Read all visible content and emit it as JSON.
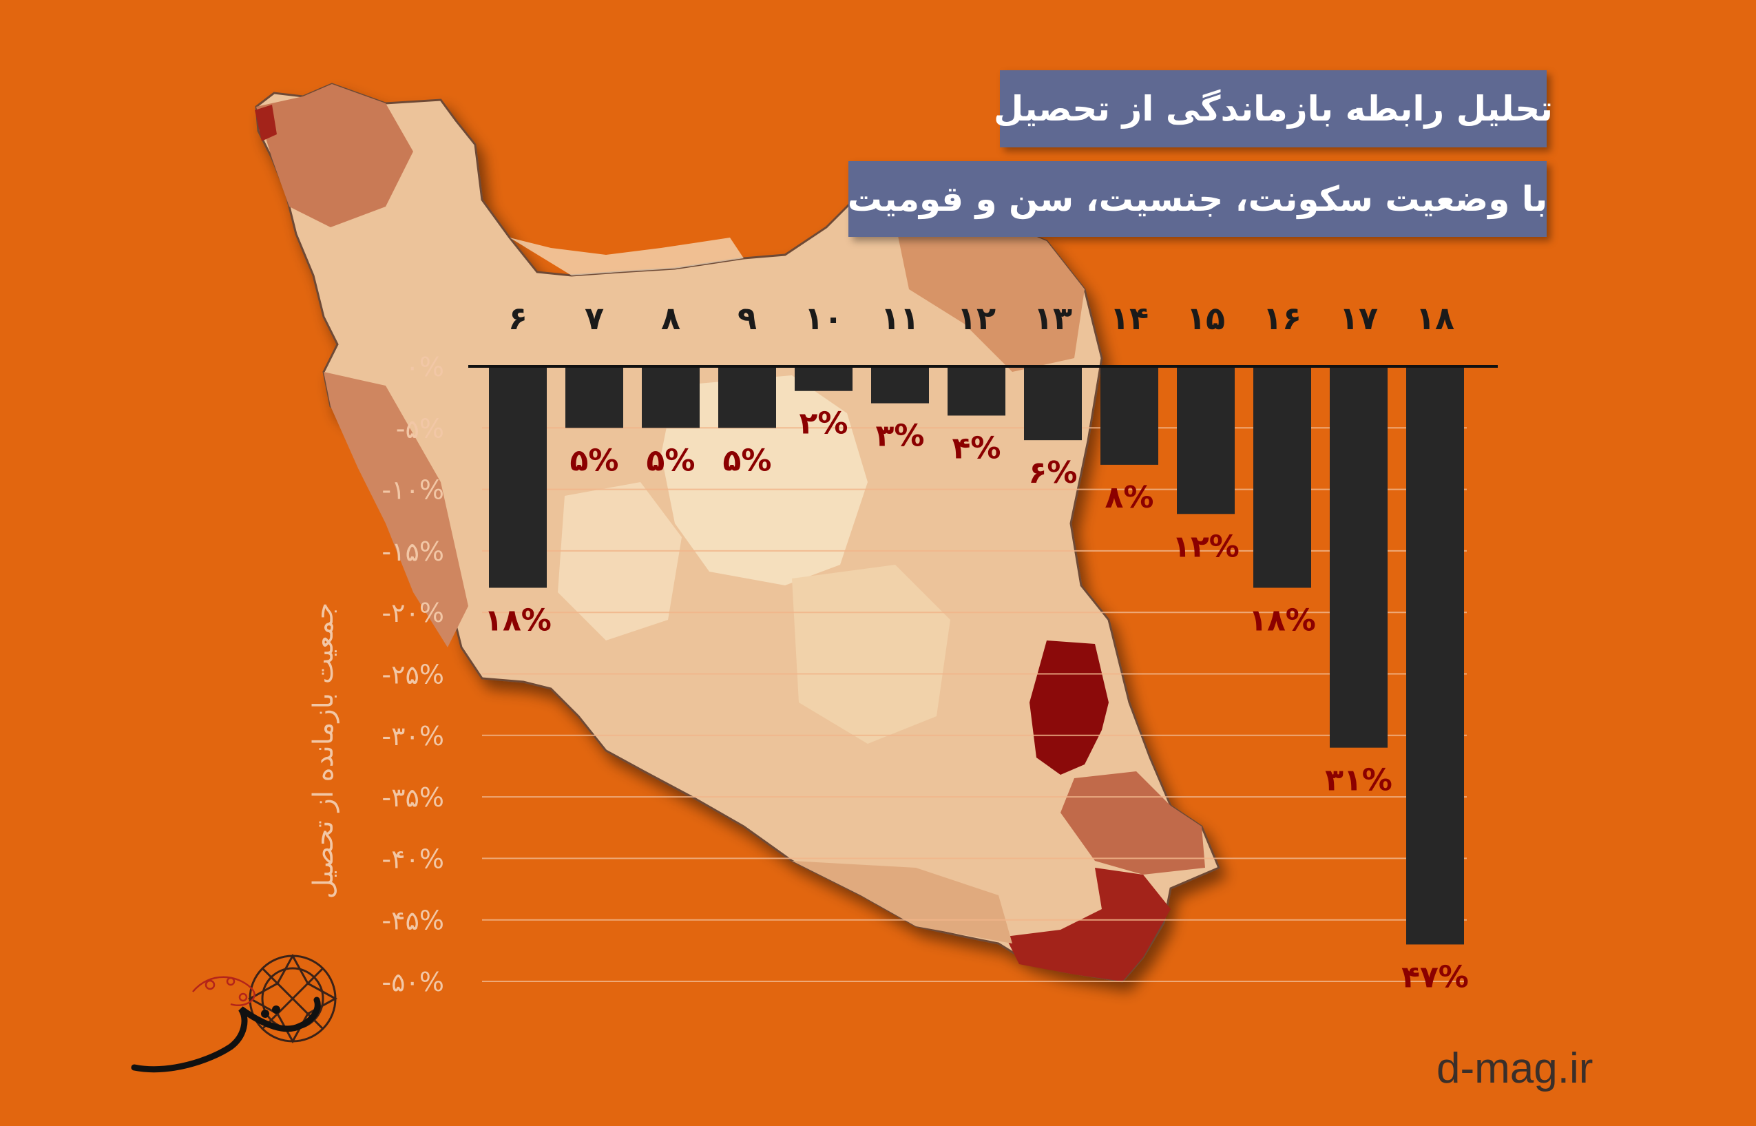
{
  "header": {
    "title_line1": "تحلیل رابطه بازماندگی از تحصیل",
    "title_line2": "با وضعیت سکونت، جنسیت، سن و قومیت"
  },
  "website": "d-mag.ir",
  "colors": {
    "background": "#e2660f",
    "bar": "#272727",
    "value_label": "#8b0000",
    "title_box": "#5f6992",
    "axis_text": "#f2c7a6",
    "map_light": "#f3d8b4",
    "map_dark": "#8b0a0a"
  },
  "chart_data": {
    "type": "bar",
    "categories": [
      "۶",
      "۷",
      "۸",
      "۹",
      "۱۰",
      "۱۱",
      "۱۲",
      "۱۳",
      "۱۴",
      "۱۵",
      "۱۶",
      "۱۷",
      "۱۸"
    ],
    "values": [
      -18,
      -5,
      -5,
      -5,
      -2,
      -3,
      -4,
      -6,
      -8,
      -12,
      -18,
      -31,
      -47
    ],
    "value_labels": [
      "۱۸%",
      "۵%",
      "۵%",
      "۵%",
      "۲%",
      "۳%",
      "۴%",
      "۶%",
      "۸%",
      "۱۲%",
      "۱۸%",
      "۳۱%",
      "۴۷%"
    ],
    "ylabel": "جمعیت بازمانده از تحصیل",
    "yticks": [
      0,
      -5,
      -10,
      -15,
      -20,
      -25,
      -30,
      -35,
      -40,
      -45,
      -50
    ],
    "ytick_labels": [
      "۰%",
      "-۵%",
      "-۱۰%",
      "-۱۵%",
      "-۲۰%",
      "-۲۵%",
      "-۳۰%",
      "-۳۵%",
      "-۴۰%",
      "-۴۵%",
      "-۵۰%"
    ],
    "ylim": [
      -50,
      0
    ],
    "grid": true,
    "legend": "none"
  }
}
